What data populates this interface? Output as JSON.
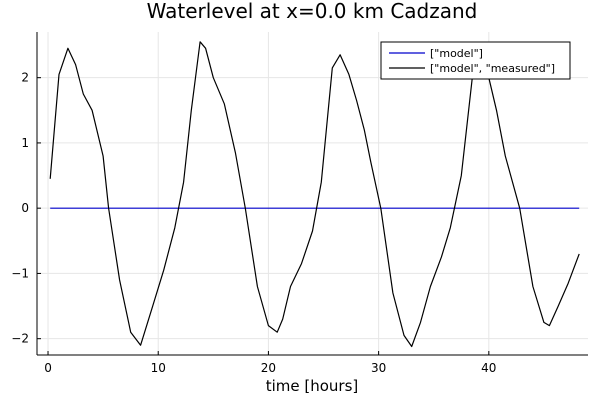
{
  "chart_data": {
    "type": "line",
    "title": "Waterlevel at x=0.0 km Cadzand",
    "xlabel": "time [hours]",
    "ylabel": "",
    "xlim": [
      -1,
      49
    ],
    "ylim": [
      -2.25,
      2.7
    ],
    "xticks": [
      0,
      10,
      20,
      30,
      40
    ],
    "yticks": [
      -2,
      -1,
      0,
      1,
      2
    ],
    "xtick_labels": [
      "0",
      "10",
      "20",
      "30",
      "40"
    ],
    "ytick_labels": [
      "−2",
      "−1",
      "0",
      "1",
      "2"
    ],
    "grid": true,
    "legend": "top-right",
    "series": [
      {
        "name": "[\"model\"]",
        "color": "#0000cc",
        "x": [
          0.2,
          48.2
        ],
        "y": [
          0.0,
          0.0
        ]
      },
      {
        "name": "[\"model\", \"measured\"]",
        "color": "#000000",
        "x": [
          0.2,
          1.0,
          1.8,
          2.5,
          3.2,
          4.0,
          5.0,
          5.5,
          6.5,
          7.5,
          8.4,
          9.5,
          10.5,
          11.5,
          12.3,
          13.0,
          13.8,
          14.3,
          15.0,
          16.0,
          17.0,
          17.9,
          19.0,
          20.0,
          20.8,
          21.3,
          22.0,
          23.0,
          24.0,
          24.8,
          25.8,
          26.5,
          27.3,
          28.0,
          28.7,
          29.3,
          30.2,
          31.3,
          32.3,
          33.0,
          33.8,
          34.7,
          35.7,
          36.5,
          37.5,
          38.5,
          39.3,
          40.0,
          40.7,
          41.5,
          42.8,
          44.0,
          45.0,
          45.5,
          46.3,
          47.2,
          48.2
        ],
        "y": [
          0.45,
          2.05,
          2.45,
          2.2,
          1.75,
          1.5,
          0.8,
          0.0,
          -1.1,
          -1.9,
          -2.1,
          -1.5,
          -0.95,
          -0.3,
          0.4,
          1.5,
          2.55,
          2.45,
          2.0,
          1.6,
          0.85,
          0.0,
          -1.2,
          -1.8,
          -1.9,
          -1.7,
          -1.2,
          -0.85,
          -0.35,
          0.4,
          2.15,
          2.35,
          2.05,
          1.65,
          1.2,
          0.7,
          0.0,
          -1.3,
          -1.95,
          -2.12,
          -1.75,
          -1.2,
          -0.75,
          -0.3,
          0.5,
          2.0,
          2.1,
          2.0,
          1.5,
          0.8,
          0.0,
          -1.2,
          -1.75,
          -1.8,
          -1.5,
          -1.15,
          -0.7
        ]
      }
    ]
  }
}
